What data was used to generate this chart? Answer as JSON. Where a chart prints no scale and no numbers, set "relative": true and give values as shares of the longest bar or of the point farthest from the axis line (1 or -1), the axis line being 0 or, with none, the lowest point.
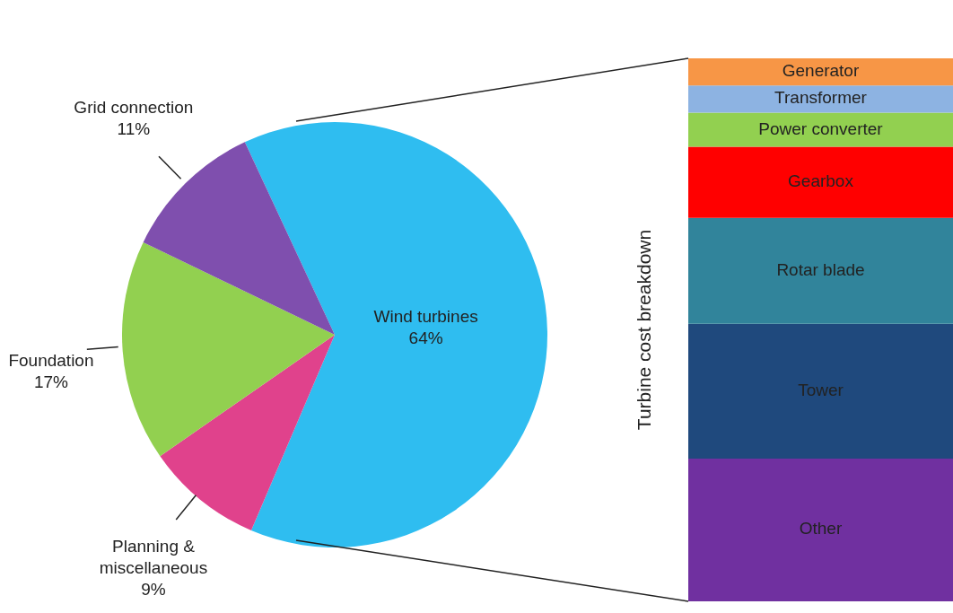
{
  "chart_data": [
    {
      "type": "pie",
      "categories": [
        "Wind turbines",
        "Planning & miscellaneous",
        "Foundation",
        "Grid connection"
      ],
      "values": [
        64,
        9,
        17,
        11
      ],
      "colors": [
        "#2fbdf0",
        "#e0428c",
        "#92d050",
        "#7f4fae"
      ],
      "value_labels": [
        "64%",
        "9%",
        "17%",
        "11%"
      ]
    },
    {
      "type": "bar",
      "stacked": true,
      "relative": true,
      "ylabel": "Turbine cost breakdown",
      "categories": [
        null
      ],
      "series": [
        {
          "name": "Other",
          "color": "#7030a0",
          "values": [
            0.263
          ]
        },
        {
          "name": "Tower",
          "color": "#1f497d",
          "values": [
            0.248
          ]
        },
        {
          "name": "Rotar blade",
          "color": "#31849b",
          "values": [
            0.195
          ]
        },
        {
          "name": "Gearbox",
          "color": "#ff0000",
          "values": [
            0.131
          ]
        },
        {
          "name": "Power converter",
          "color": "#92d050",
          "values": [
            0.063
          ]
        },
        {
          "name": "Transformer",
          "color": "#8db3e2",
          "values": [
            0.05
          ]
        },
        {
          "name": "Generator",
          "color": "#f79646",
          "values": [
            0.05
          ]
        }
      ]
    }
  ]
}
